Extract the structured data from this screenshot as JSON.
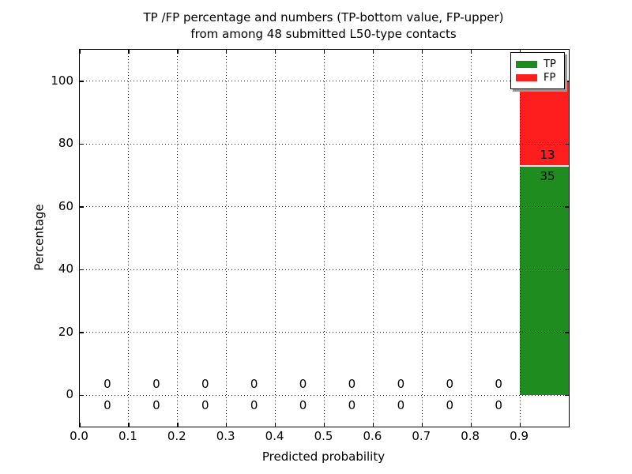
{
  "title": {
    "line1": "TP /FP percentage and numbers (TP-bottom value, FP-upper)",
    "line2": "from among 48 submitted L50-type contacts"
  },
  "chart_data": {
    "type": "bar",
    "stacked": true,
    "title": "TP /FP percentage and numbers (TP-bottom value, FP-upper)\nfrom among 48 submitted L50-type contacts",
    "xlabel": "Predicted probability",
    "ylabel": "Percentage",
    "xlim": [
      0.0,
      1.0
    ],
    "ylim": [
      -10,
      110
    ],
    "xticks": [
      0.0,
      0.1,
      0.2,
      0.3,
      0.4,
      0.5,
      0.6,
      0.7,
      0.8,
      0.9
    ],
    "yticks": [
      0,
      20,
      40,
      60,
      80,
      100
    ],
    "grid": true,
    "grid_linestyle": "dotted",
    "legend_position": "upper right",
    "total_contacts": 48,
    "bin_width": 0.1,
    "bin_edges": [
      0.0,
      0.1,
      0.2,
      0.3,
      0.4,
      0.5,
      0.6,
      0.7,
      0.8,
      0.9,
      1.0
    ],
    "categories": [
      "0.0-0.1",
      "0.1-0.2",
      "0.2-0.3",
      "0.3-0.4",
      "0.4-0.5",
      "0.5-0.6",
      "0.6-0.7",
      "0.7-0.8",
      "0.8-0.9",
      "0.9-1.0"
    ],
    "series": [
      {
        "name": "TP",
        "color": "#1e8c1e",
        "counts": [
          0,
          0,
          0,
          0,
          0,
          0,
          0,
          0,
          0,
          35
        ]
      },
      {
        "name": "FP",
        "color": "#ff1e1e",
        "counts": [
          0,
          0,
          0,
          0,
          0,
          0,
          0,
          0,
          0,
          13
        ]
      }
    ],
    "bar_percentages": {
      "tp_pct_last_bin": 72.92,
      "fp_pct_last_bin": 27.08
    }
  }
}
